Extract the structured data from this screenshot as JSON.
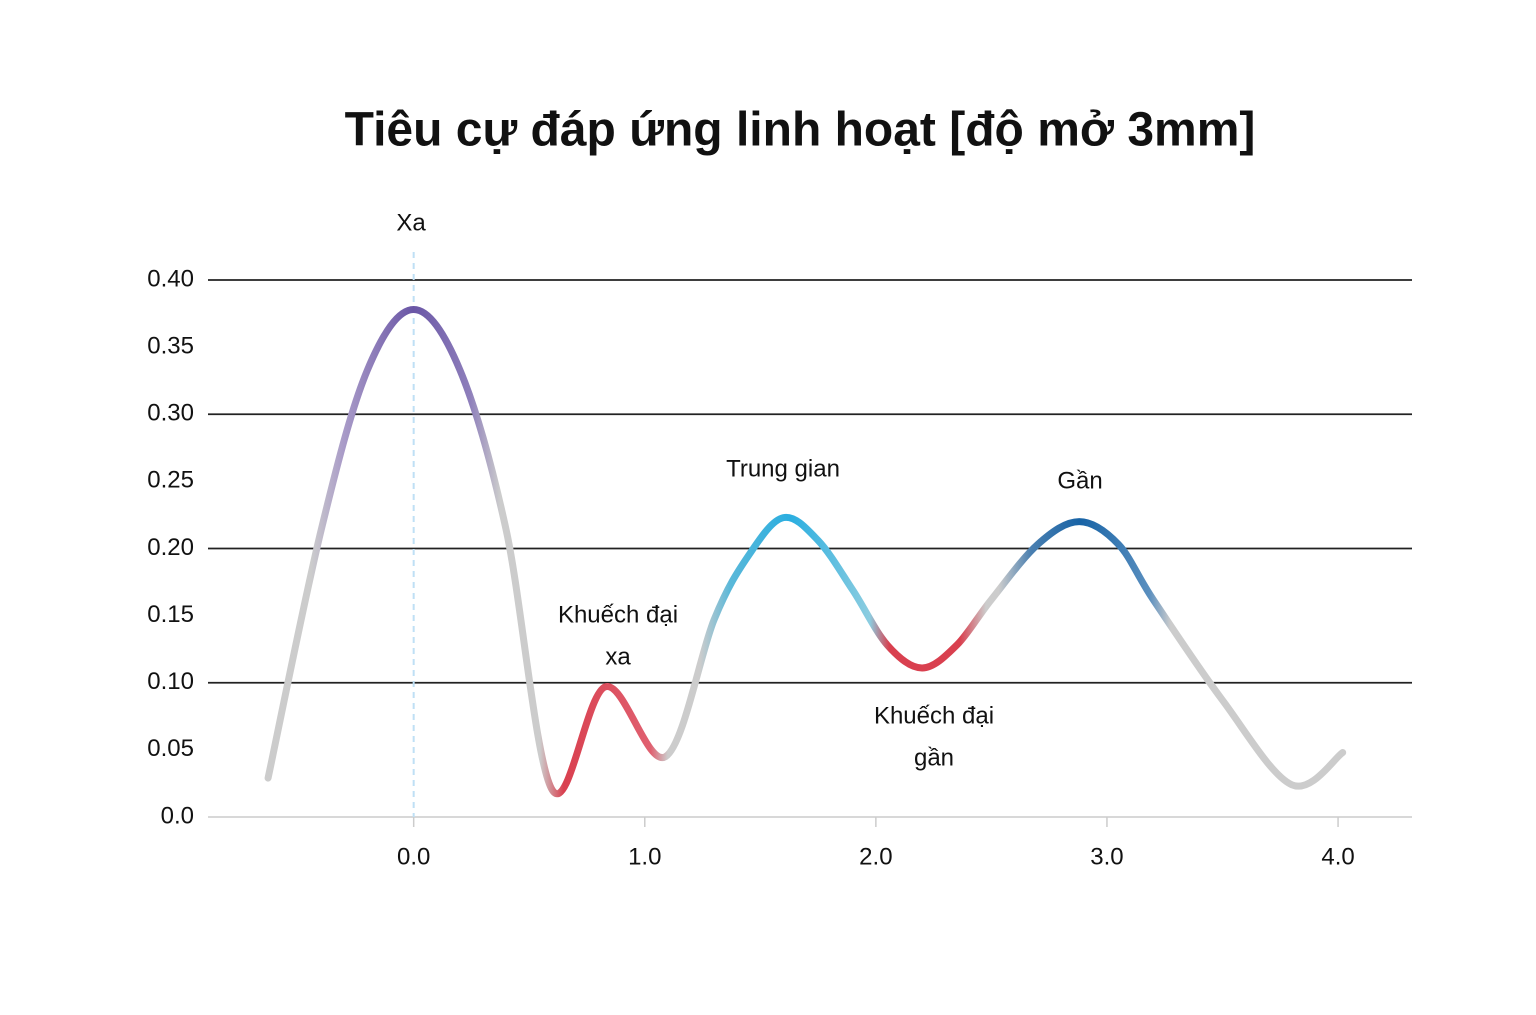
{
  "chart_data": {
    "type": "line",
    "title": "Tiêu cự đáp ứng linh hoạt [độ mở 3mm]",
    "annotations": [
      [
        "Xa"
      ],
      [
        "Khuếch đại",
        "xa"
      ],
      [
        "Trung gian"
      ],
      [
        "Khuếch đại",
        "gần"
      ],
      [
        "Gần"
      ]
    ],
    "x": [
      -0.63,
      -0.4,
      -0.2,
      0.0,
      0.2,
      0.4,
      0.6,
      0.83,
      1.09,
      1.3,
      1.45,
      1.6,
      1.75,
      1.9,
      2.05,
      2.2,
      2.35,
      2.5,
      2.7,
      2.88,
      3.05,
      3.2,
      3.5,
      3.8,
      4.02
    ],
    "series": [
      {
        "color": "#cccccc",
        "values": [
          0.029,
          0.214,
          0.333,
          0.378,
          0.333,
          0.214,
          0.02,
          0.097,
          0.045,
          0.147,
          0.195,
          0.223,
          0.206,
          0.169,
          0.128,
          0.111,
          0.128,
          0.162,
          0.203,
          0.22,
          0.203,
          0.162,
          0.087,
          0.024,
          0.048
        ]
      }
    ],
    "xlim": [
      -0.89,
      4.32
    ],
    "ylim": [
      0,
      0.4
    ],
    "xticks": [
      {
        "value": 0,
        "label": "0.0"
      },
      {
        "value": 1,
        "label": "1.0"
      },
      {
        "value": 2,
        "label": "2.0"
      },
      {
        "value": 3,
        "label": "3.0"
      },
      {
        "value": 4,
        "label": "4.0"
      }
    ],
    "yticks": [
      {
        "value": 0,
        "label": "0.0"
      },
      0.05,
      {
        "value": 0.1,
        "label": "0.10"
      },
      0.15,
      {
        "value": 0.2,
        "label": "0.20"
      },
      0.25,
      {
        "value": 0.3,
        "label": "0.30"
      },
      0.35,
      {
        "value": 0.4,
        "label": "0.40"
      }
    ],
    "ygrid": [
      0.1,
      0.2,
      0.3,
      0.4
    ]
  }
}
